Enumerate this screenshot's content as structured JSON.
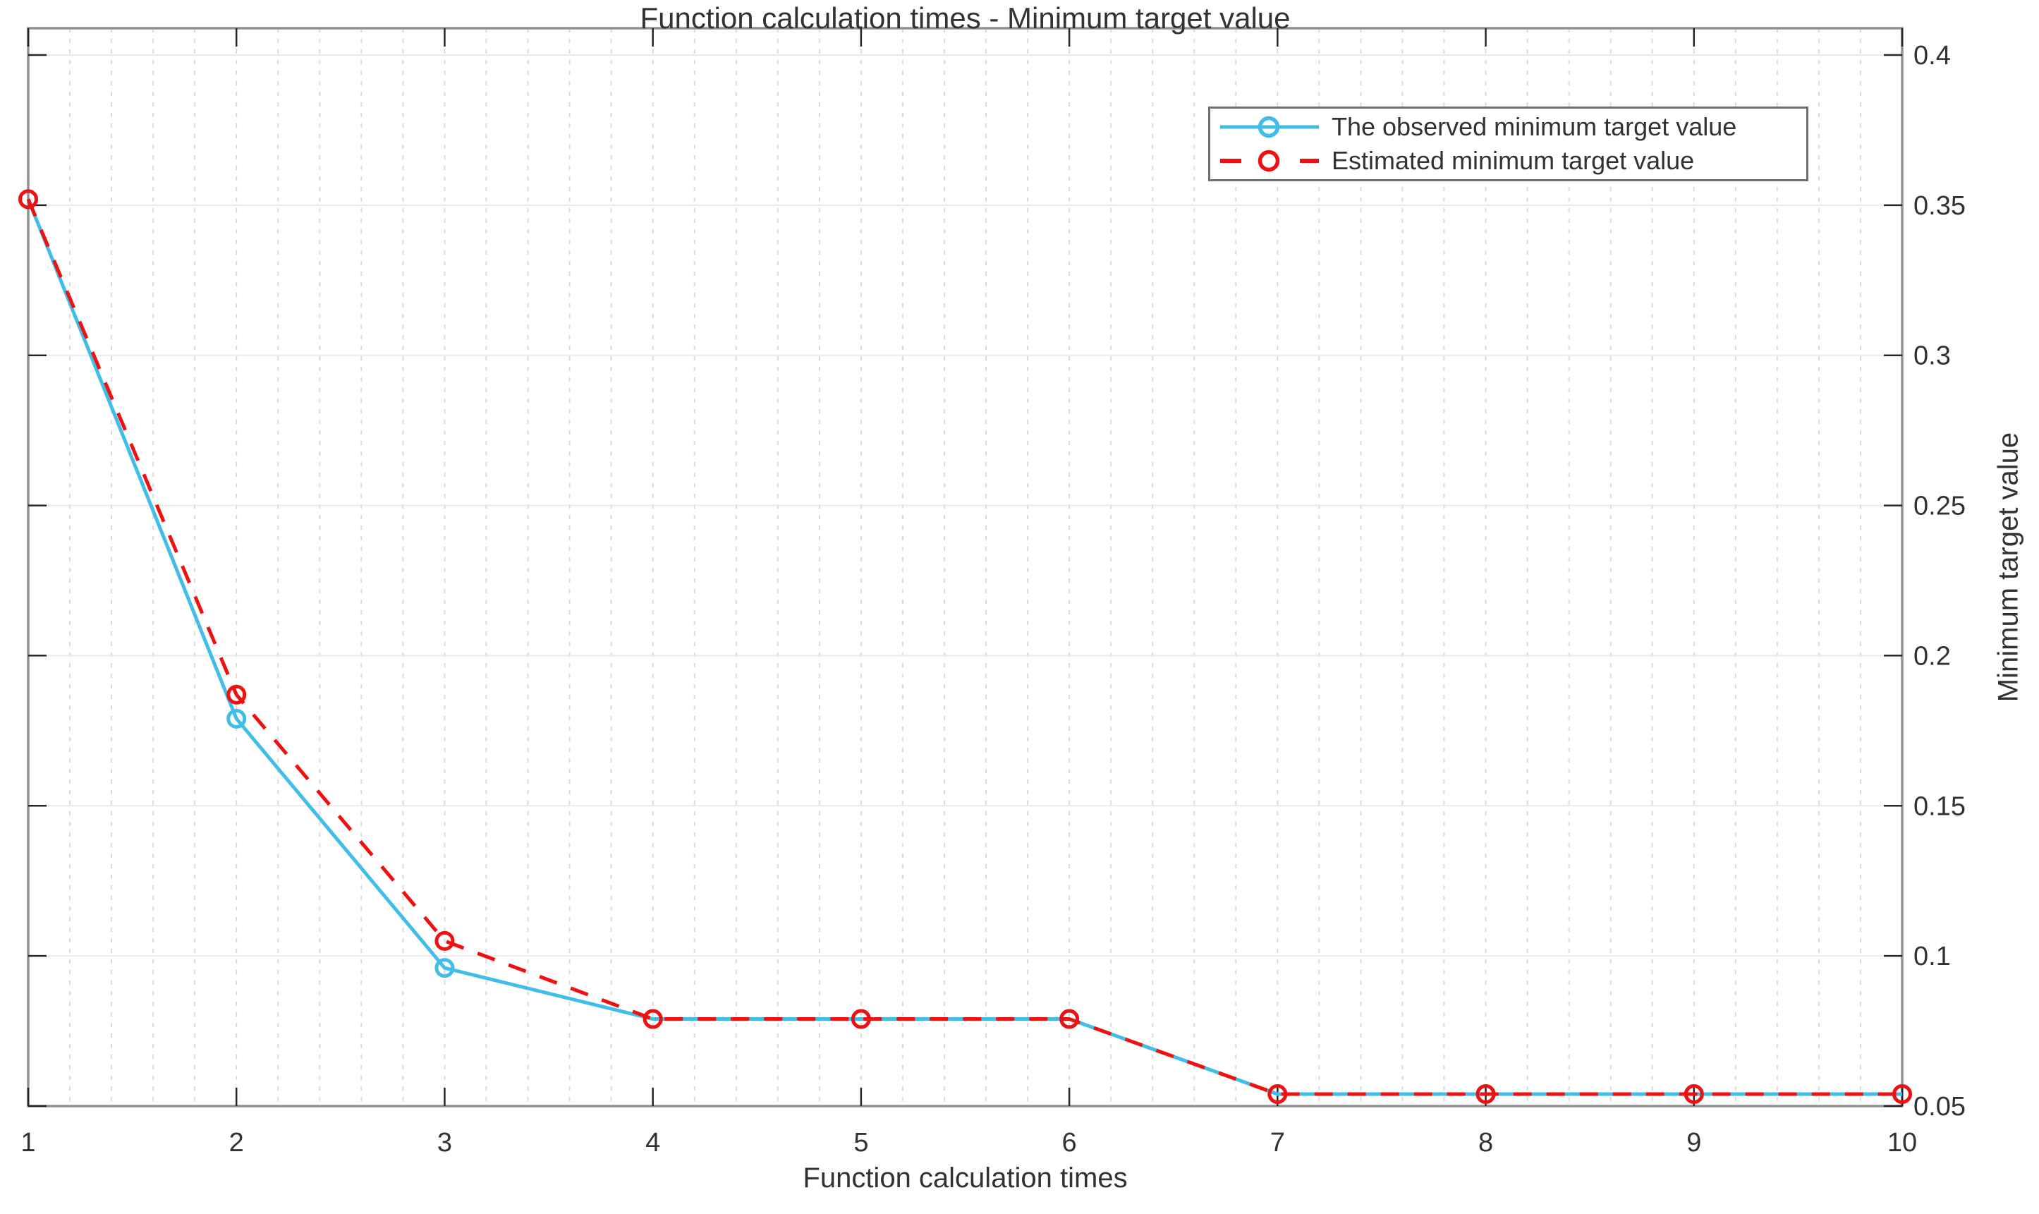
{
  "chart_data": {
    "type": "line",
    "title": "Function calculation times - Minimum target value",
    "xlabel": "Function calculation times",
    "ylabel": "Minimum target value",
    "x": [
      1,
      2,
      3,
      4,
      5,
      6,
      7,
      8,
      9,
      10
    ],
    "series": [
      {
        "name": "The observed minimum target value",
        "color": "#40BDE9",
        "line_style": "solid",
        "marker": "open-circle",
        "values": [
          0.352,
          0.179,
          0.096,
          0.079,
          0.079,
          0.079,
          0.054,
          0.054,
          0.054,
          0.054
        ]
      },
      {
        "name": "Estimated minimum target value",
        "color": "#F11010",
        "line_style": "dashed",
        "marker": "open-circle",
        "values": [
          0.352,
          0.187,
          0.105,
          0.079,
          0.079,
          0.079,
          0.054,
          0.054,
          0.054,
          0.054
        ]
      }
    ],
    "xlim": [
      1,
      10
    ],
    "ylim": [
      0.05,
      0.4
    ],
    "xticks": {
      "values": [
        1,
        2,
        3,
        4,
        5,
        6,
        7,
        8,
        9,
        10
      ],
      "labels": [
        "1",
        "2",
        "3",
        "4",
        "5",
        "6",
        "7",
        "8",
        "9",
        "10"
      ]
    },
    "yticks": {
      "values": [
        0.05,
        0.1,
        0.15,
        0.2,
        0.25,
        0.3,
        0.35,
        0.4
      ],
      "labels": [
        "0.05",
        "0.1",
        "0.15",
        "0.2",
        "0.25",
        "0.3",
        "0.35",
        "0.4"
      ]
    },
    "x_minor_step": 0.2,
    "grid": {
      "vertical": "dotted",
      "horizontal": "solid",
      "legend_position": "top-right",
      "y_axis_side": "right"
    },
    "colors": {
      "observed_line": "#40BDE9",
      "estimated_line": "#F11010",
      "grid_vertical": "#DBDBDB",
      "grid_horizontal": "#EAEAEA",
      "axis_border": "#919191",
      "tick_mark": "#262626",
      "text": "#323232",
      "background": "#FFFFFF"
    }
  }
}
